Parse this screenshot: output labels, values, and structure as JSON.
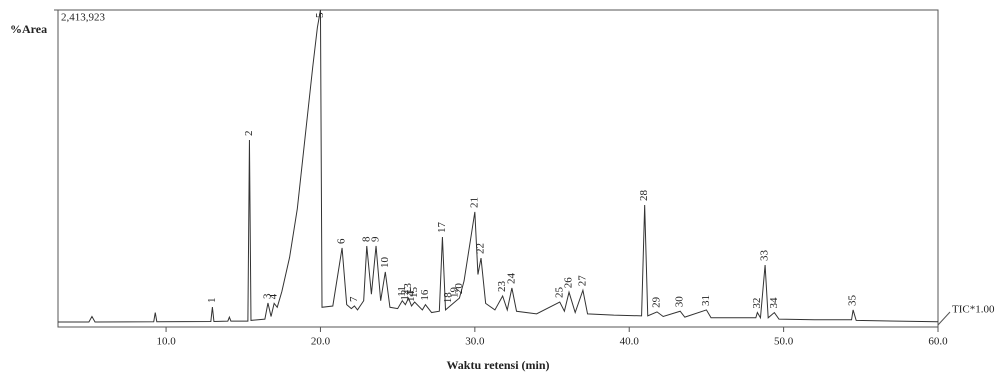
{
  "chart_data": {
    "type": "line",
    "ylabel": "%Area",
    "xlabel": "Waktu retensi (min)",
    "annotation": "TIC*1.00",
    "color": "#333333",
    "xlim": [
      3,
      60
    ],
    "ylim": [
      0,
      2413923
    ],
    "xticks": [
      {
        "value": 10,
        "label": "10.0"
      },
      {
        "value": 20,
        "label": "20.0"
      },
      {
        "value": 30,
        "label": "30.0"
      },
      {
        "value": 40,
        "label": "40.0"
      },
      {
        "value": 50,
        "label": "50.0"
      },
      {
        "value": 60,
        "label": "60.0"
      }
    ],
    "yticks": [
      {
        "value": 2413923,
        "label": "2,413,923"
      }
    ],
    "x": [
      3.0,
      5.0,
      5.2,
      5.4,
      9.2,
      9.3,
      9.4,
      12.9,
      13.0,
      13.1,
      14.0,
      14.1,
      14.2,
      15.3,
      15.4,
      15.5,
      16.4,
      16.6,
      16.8,
      17.0,
      17.2,
      17.5,
      18.0,
      18.5,
      19.0,
      19.5,
      19.8,
      20.0,
      20.1,
      20.8,
      21.4,
      21.7,
      22.0,
      22.2,
      22.4,
      22.8,
      23.0,
      23.3,
      23.6,
      23.9,
      24.2,
      24.5,
      25.0,
      25.3,
      25.5,
      25.7,
      25.9,
      26.1,
      26.6,
      26.8,
      27.2,
      27.7,
      27.9,
      28.1,
      28.3,
      28.7,
      29.0,
      29.3,
      29.7,
      30.0,
      30.2,
      30.4,
      30.7,
      31.3,
      31.8,
      32.1,
      32.4,
      32.7,
      34.0,
      35.5,
      35.8,
      36.1,
      36.5,
      37.0,
      37.3,
      39.0,
      40.8,
      41.0,
      41.2,
      41.8,
      42.2,
      43.3,
      43.6,
      45.0,
      45.3,
      48.2,
      48.3,
      48.5,
      48.8,
      49.0,
      49.4,
      49.7,
      52.0,
      54.4,
      54.5,
      54.7,
      60.0
    ],
    "values": [
      38000,
      38000,
      80000,
      38000,
      40000,
      110000,
      40000,
      42000,
      152000,
      42000,
      45000,
      75000,
      45000,
      45000,
      1424000,
      50000,
      60000,
      183000,
      80000,
      180000,
      150000,
      270000,
      530000,
      900000,
      1440000,
      1980000,
      2280000,
      2413923,
      150000,
      160000,
      602000,
      170000,
      140000,
      160000,
      130000,
      200000,
      617000,
      250000,
      617000,
      200000,
      419000,
      150000,
      140000,
      200000,
      170000,
      220000,
      160000,
      190000,
      130000,
      170000,
      110000,
      120000,
      685000,
      130000,
      150000,
      190000,
      220000,
      350000,
      650000,
      876000,
      400000,
      525000,
      180000,
      130000,
      236000,
      130000,
      297000,
      120000,
      100000,
      190000,
      120000,
      265000,
      110000,
      280000,
      100000,
      90000,
      85000,
      929000,
      85000,
      115000,
      80000,
      120000,
      75000,
      130000,
      70000,
      70000,
      110000,
      70000,
      472000,
      70000,
      110000,
      60000,
      55000,
      55000,
      130000,
      50000,
      40000
    ],
    "peaks": [
      {
        "label": "1",
        "x": 13.0
      },
      {
        "label": "2",
        "x": 15.4
      },
      {
        "label": "3",
        "x": 16.6
      },
      {
        "label": "4",
        "x": 17.0
      },
      {
        "label": "5",
        "x": 20.0
      },
      {
        "label": "6",
        "x": 21.4
      },
      {
        "label": "7",
        "x": 22.2
      },
      {
        "label": "8",
        "x": 23.0
      },
      {
        "label": "9",
        "x": 23.6
      },
      {
        "label": "10",
        "x": 24.2
      },
      {
        "label": "11",
        "x": 25.3
      },
      {
        "label": "12",
        "x": 25.5
      },
      {
        "label": "13",
        "x": 25.7
      },
      {
        "label": "14",
        "x": 25.9
      },
      {
        "label": "15",
        "x": 26.1
      },
      {
        "label": "16",
        "x": 26.8
      },
      {
        "label": "17",
        "x": 27.9
      },
      {
        "label": "18",
        "x": 28.3
      },
      {
        "label": "19",
        "x": 28.7
      },
      {
        "label": "20",
        "x": 29.0
      },
      {
        "label": "21",
        "x": 30.0
      },
      {
        "label": "22",
        "x": 30.4
      },
      {
        "label": "23",
        "x": 31.8
      },
      {
        "label": "24",
        "x": 32.4
      },
      {
        "label": "25",
        "x": 35.5
      },
      {
        "label": "26",
        "x": 36.1
      },
      {
        "label": "27",
        "x": 37.0
      },
      {
        "label": "28",
        "x": 41.0
      },
      {
        "label": "29",
        "x": 41.8
      },
      {
        "label": "30",
        "x": 43.3
      },
      {
        "label": "31",
        "x": 45.0
      },
      {
        "label": "32",
        "x": 48.3
      },
      {
        "label": "33",
        "x": 48.8
      },
      {
        "label": "34",
        "x": 49.4
      },
      {
        "label": "35",
        "x": 54.5
      }
    ]
  }
}
